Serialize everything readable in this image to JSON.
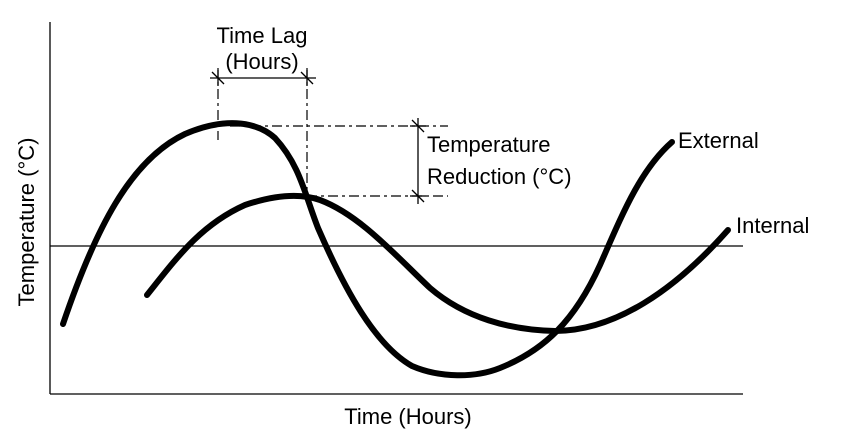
{
  "diagram": {
    "y_axis_label": "Temperature (°C)",
    "x_axis_label": "Time (Hours)",
    "time_lag_label_line1": "Time Lag",
    "time_lag_label_line2": "(Hours)",
    "temp_reduction_line1": "Temperature",
    "temp_reduction_line2": "Reduction (°C)",
    "external_label": "External",
    "internal_label": "Internal"
  }
}
